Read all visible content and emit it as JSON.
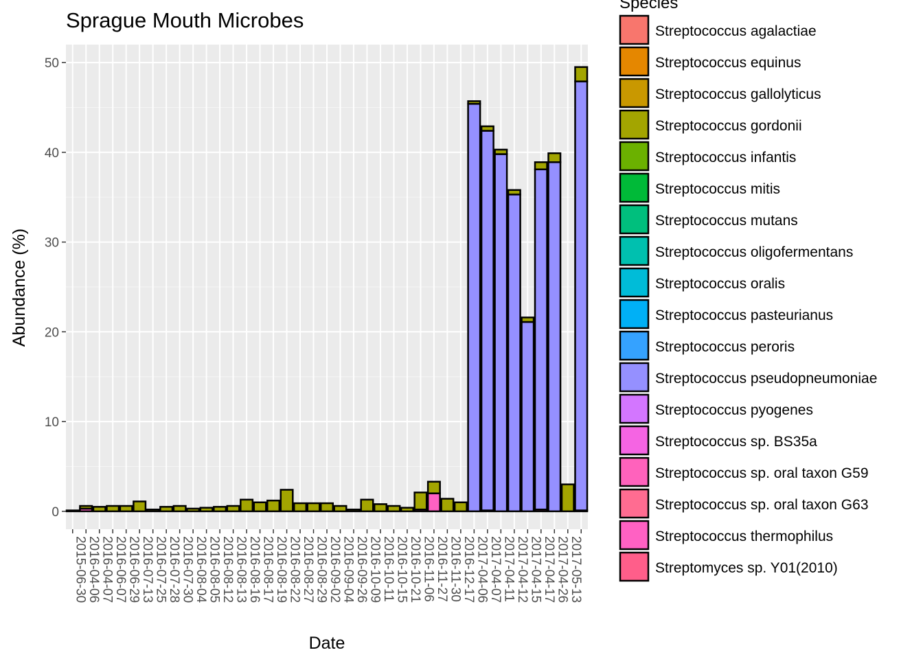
{
  "chart_data": {
    "type": "bar",
    "stacked": true,
    "title": "Sprague Mouth Microbes",
    "xlabel": "Date",
    "ylabel": "Abundance (%)",
    "ylim": [
      -2,
      52
    ],
    "yticks": [
      0,
      10,
      20,
      30,
      40,
      50
    ],
    "grid": true,
    "legend_title": "Species",
    "legend_position": "right",
    "categories": [
      "2015-06-30",
      "2016-04-06",
      "2016-04-07",
      "2016-06-07",
      "2016-06-29",
      "2016-07-13",
      "2016-07-25",
      "2016-07-28",
      "2016-07-30",
      "2016-08-04",
      "2016-08-05",
      "2016-08-12",
      "2016-08-13",
      "2016-08-16",
      "2016-08-17",
      "2016-08-19",
      "2016-08-22",
      "2016-08-27",
      "2016-08-29",
      "2016-09-02",
      "2016-09-04",
      "2016-09-26",
      "2016-10-09",
      "2016-10-11",
      "2016-10-15",
      "2016-10-21",
      "2016-11-06",
      "2016-11-27",
      "2016-11-30",
      "2016-12-17",
      "2017-04-06",
      "2017-04-07",
      "2017-04-11",
      "2017-04-12",
      "2017-04-15",
      "2017-04-17",
      "2017-04-26",
      "2017-05-13",
      "2017-05-13b"
    ],
    "category_labels": [
      "2015-06-30",
      "2016-04-06",
      "2016-04-07",
      "2016-06-07",
      "2016-06-29",
      "2016-07-13",
      "2016-07-25",
      "2016-07-28",
      "2016-07-30",
      "2016-08-04",
      "2016-08-05",
      "2016-08-12",
      "2016-08-13",
      "2016-08-16",
      "2016-08-17",
      "2016-08-19",
      "2016-08-22",
      "2016-08-27",
      "2016-08-29",
      "2016-09-02",
      "2016-09-04",
      "2016-09-26",
      "2016-10-09",
      "2016-10-11",
      "2016-10-15",
      "2016-10-21",
      "2016-11-06",
      "2016-11-27",
      "2016-11-30",
      "2016-12-17",
      "2017-04-06",
      "2017-04-07",
      "2017-04-11",
      "2017-04-12",
      "2017-04-15",
      "2017-04-17",
      "2017-04-26",
      "2017-05-13",
      ""
    ],
    "legend": [
      {
        "name": "Streptococcus agalactiae",
        "color": "#F8766D"
      },
      {
        "name": "Streptococcus equinus",
        "color": "#E58700"
      },
      {
        "name": "Streptococcus gallolyticus",
        "color": "#C99800"
      },
      {
        "name": "Streptococcus gordonii",
        "color": "#A3A500"
      },
      {
        "name": "Streptococcus infantis",
        "color": "#6BB100"
      },
      {
        "name": "Streptococcus mitis",
        "color": "#00BA38"
      },
      {
        "name": "Streptococcus mutans",
        "color": "#00BF7D"
      },
      {
        "name": "Streptococcus oligofermentans",
        "color": "#00C0AF"
      },
      {
        "name": "Streptococcus oralis",
        "color": "#00BCD8"
      },
      {
        "name": "Streptococcus pasteurianus",
        "color": "#00B0F6"
      },
      {
        "name": "Streptococcus peroris",
        "color": "#619CFF"
      },
      {
        "name": "Streptococcus pseudopneumoniae",
        "color": "#B983FF"
      },
      {
        "name": "Streptococcus pyogenes",
        "color": "#E76BF3"
      },
      {
        "name": "Streptococcus sp. BS35a",
        "color": "#FD61D1"
      },
      {
        "name": "Streptococcus sp. oral taxon G59",
        "color": "#FF67A4"
      },
      {
        "name": "Streptococcus sp. oral taxon G63",
        "color": "#F8766D"
      },
      {
        "name": "Streptococcus thermophilus",
        "color": "#FF6C91"
      },
      {
        "name": "Streptomyces sp. Y01(2010)",
        "color": "#FF5E8A"
      }
    ],
    "legend_colors_render": [
      "#F8766D",
      "#E58700",
      "#C99800",
      "#A3A500",
      "#6BB100",
      "#00BA38",
      "#00BF7D",
      "#00C0AF",
      "#00BCD8",
      "#00B0F6",
      "#35A2FF",
      "#9590FF",
      "#D376FF",
      "#F564E3",
      "#FF62BC",
      "#FF6C91",
      "#FF61C3",
      "#FF5E8A"
    ],
    "series": [
      {
        "name": "Streptococcus gordonii",
        "color": "#A3A500",
        "values": [
          0.1,
          0.3,
          0.5,
          0.6,
          0.6,
          1.1,
          0.2,
          0.5,
          0.6,
          0.3,
          0.4,
          0.5,
          0.6,
          1.3,
          1.0,
          1.2,
          2.4,
          0.9,
          0.9,
          0.9,
          0.6,
          0.2,
          1.3,
          0.8,
          0.6,
          0.4,
          1.9,
          1.3,
          1.4,
          1.0,
          0.3,
          0.5,
          0.5,
          0.5,
          0.5,
          0.8,
          1.0,
          3.0,
          1.6
        ]
      },
      {
        "name": "Streptococcus sp. BS35a",
        "color": "#9590FF",
        "values": [
          0,
          0,
          0,
          0,
          0,
          0,
          0,
          0,
          0,
          0,
          0,
          0,
          0,
          0,
          0,
          0,
          0,
          0,
          0,
          0,
          0,
          0,
          0,
          0,
          0,
          0,
          0,
          0,
          0,
          0,
          45.4,
          42.3,
          39.8,
          35.3,
          21.1,
          37.9,
          38.9,
          0,
          47.8
        ]
      },
      {
        "name": "Streptococcus thermophilus",
        "color": "#FF61C3",
        "values": [
          0,
          0.3,
          0,
          0,
          0,
          0,
          0,
          0,
          0,
          0,
          0,
          0,
          0,
          0,
          0,
          0,
          0,
          0,
          0,
          0,
          0,
          0,
          0,
          0,
          0,
          0,
          0.2,
          2.0,
          0,
          0,
          0,
          0.1,
          0,
          0,
          0,
          0.2,
          0,
          0,
          0.1
        ]
      }
    ]
  }
}
